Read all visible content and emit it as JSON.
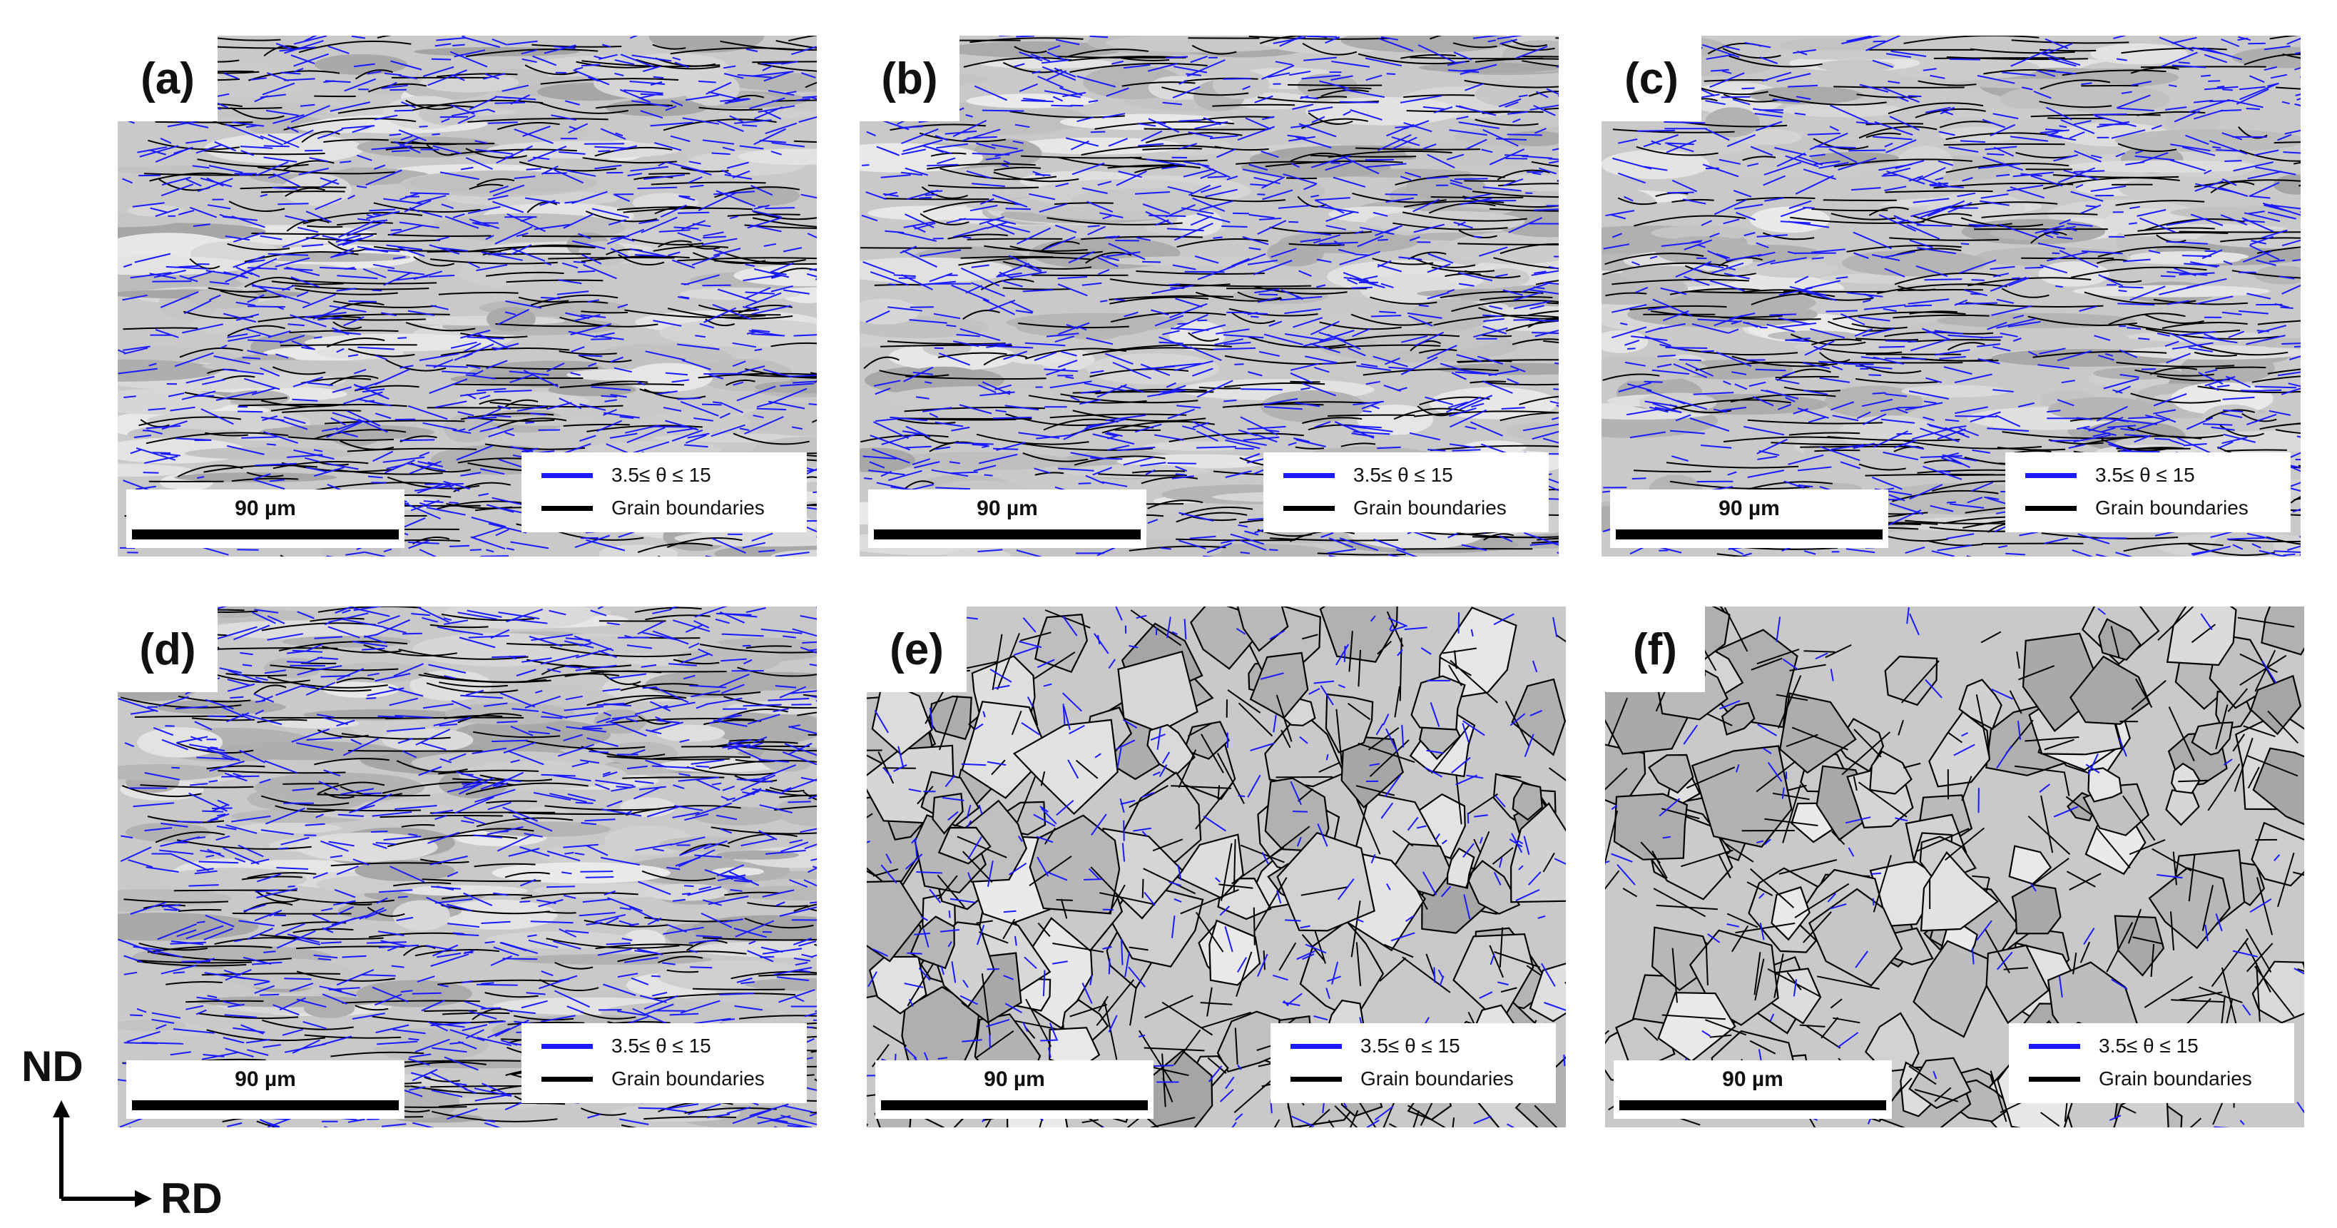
{
  "panels": [
    {
      "label": "(a)",
      "density": 1.0,
      "style": "deformed"
    },
    {
      "label": "(b)",
      "density": 0.95,
      "style": "deformed"
    },
    {
      "label": "(c)",
      "density": 0.95,
      "style": "deformed"
    },
    {
      "label": "(d)",
      "density": 1.0,
      "style": "deformed"
    },
    {
      "label": "(e)",
      "density": 0.35,
      "style": "partial"
    },
    {
      "label": "(f)",
      "density": 0.1,
      "style": "recrystallized"
    }
  ],
  "scalebar": {
    "text": "90 µm"
  },
  "legend": {
    "low_angle": "3.5≤ θ  ≤ 15",
    "grain": "Grain boundaries",
    "low_angle_color": "#1a1aff",
    "grain_color": "#000000"
  },
  "axes": {
    "vertical": "ND",
    "horizontal": "RD"
  }
}
